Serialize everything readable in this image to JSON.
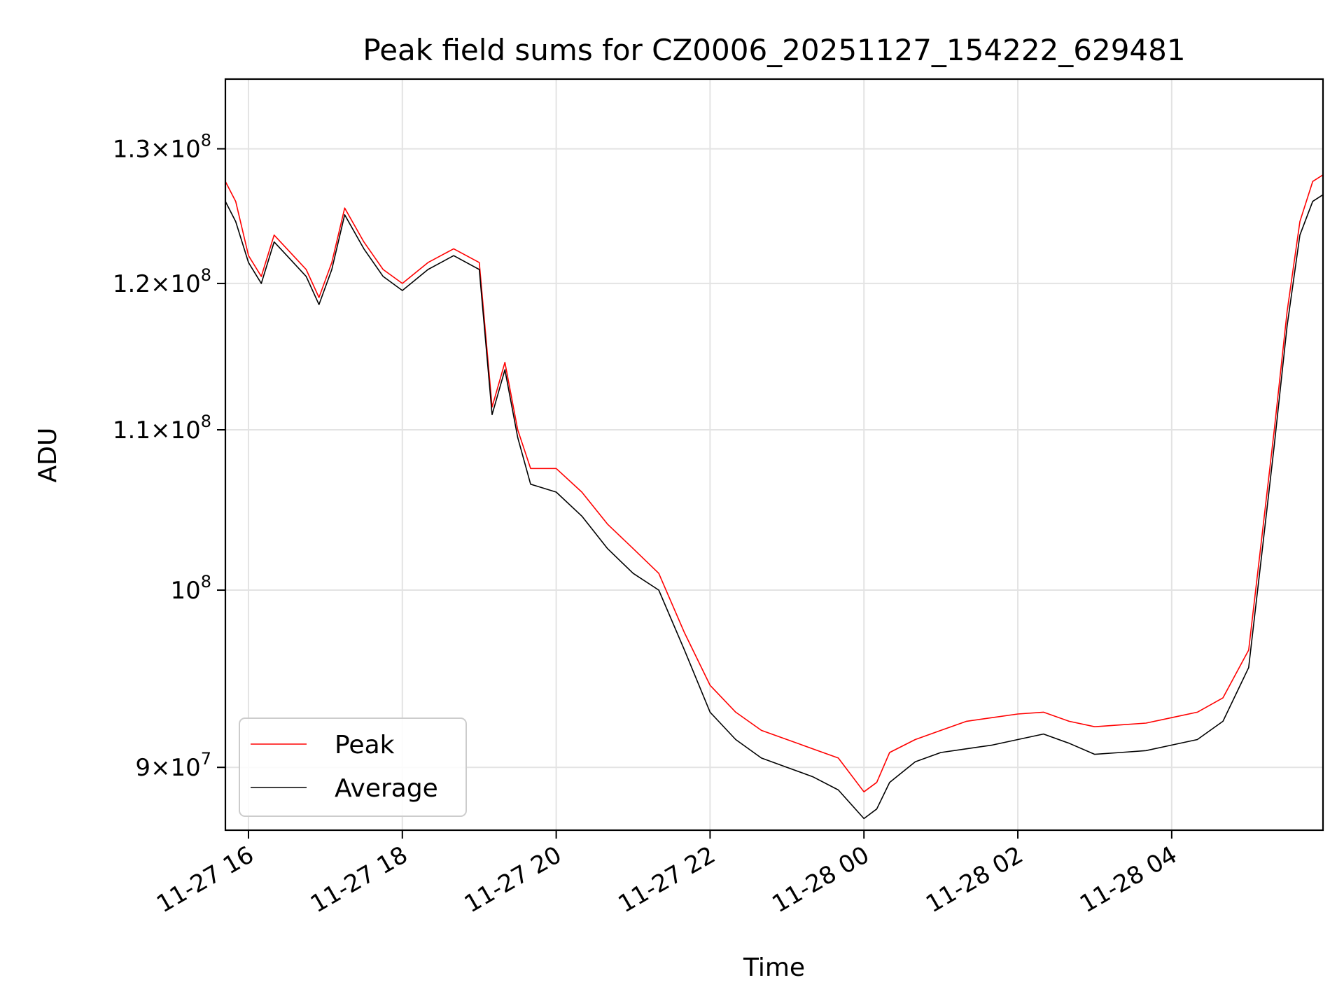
{
  "chart_data": {
    "type": "line",
    "title": "Peak field sums for CZ0006_20251127_154222_629481",
    "xlabel": "Time",
    "ylabel": "ADU",
    "y_scale": "log",
    "xlim": [
      "2025-11-27 15:42",
      "2025-11-28 05:58"
    ],
    "ylim": [
      86700000,
      135500000
    ],
    "grid": true,
    "legend_position": "lower-left",
    "x_ticks": [
      {
        "t": "2025-11-27 16:00",
        "label": "11-27 16"
      },
      {
        "t": "2025-11-27 18:00",
        "label": "11-27 18"
      },
      {
        "t": "2025-11-27 20:00",
        "label": "11-27 20"
      },
      {
        "t": "2025-11-27 22:00",
        "label": "11-27 22"
      },
      {
        "t": "2025-11-28 00:00",
        "label": "11-28 00"
      },
      {
        "t": "2025-11-28 02:00",
        "label": "11-28 02"
      },
      {
        "t": "2025-11-28 04:00",
        "label": "11-28 04"
      }
    ],
    "y_ticks": [
      {
        "v": 90000000,
        "mantissa": "9",
        "exp": "7",
        "label": "9 × 10^7"
      },
      {
        "v": 100000000,
        "mantissa": "",
        "exp": "8",
        "label": "10^8"
      },
      {
        "v": 110000000,
        "mantissa": "1.1",
        "exp": "8",
        "label": "1.1 × 10^8"
      },
      {
        "v": 120000000,
        "mantissa": "1.2",
        "exp": "8",
        "label": "1.2 × 10^8"
      },
      {
        "v": 130000000,
        "mantissa": "1.3",
        "exp": "8",
        "label": "1.3 × 10^8"
      }
    ],
    "series": [
      {
        "name": "Peak",
        "color": "#ff0000",
        "x": [
          "2025-11-27 15:42",
          "2025-11-27 15:50",
          "2025-11-27 16:00",
          "2025-11-27 16:10",
          "2025-11-27 16:20",
          "2025-11-27 16:30",
          "2025-11-27 16:45",
          "2025-11-27 16:55",
          "2025-11-27 17:05",
          "2025-11-27 17:15",
          "2025-11-27 17:30",
          "2025-11-27 17:45",
          "2025-11-27 18:00",
          "2025-11-27 18:20",
          "2025-11-27 18:40",
          "2025-11-27 19:00",
          "2025-11-27 19:10",
          "2025-11-27 19:20",
          "2025-11-27 19:30",
          "2025-11-27 19:40",
          "2025-11-27 20:00",
          "2025-11-27 20:20",
          "2025-11-27 20:40",
          "2025-11-27 21:00",
          "2025-11-27 21:20",
          "2025-11-27 21:40",
          "2025-11-27 22:00",
          "2025-11-27 22:20",
          "2025-11-27 22:40",
          "2025-11-27 23:00",
          "2025-11-27 23:20",
          "2025-11-27 23:40",
          "2025-11-28 00:00",
          "2025-11-28 00:10",
          "2025-11-28 00:20",
          "2025-11-28 00:40",
          "2025-11-28 01:00",
          "2025-11-28 01:20",
          "2025-11-28 01:40",
          "2025-11-28 02:00",
          "2025-11-28 02:20",
          "2025-11-28 02:40",
          "2025-11-28 03:00",
          "2025-11-28 03:20",
          "2025-11-28 03:40",
          "2025-11-28 04:00",
          "2025-11-28 04:20",
          "2025-11-28 04:40",
          "2025-11-28 05:00",
          "2025-11-28 05:10",
          "2025-11-28 05:20",
          "2025-11-28 05:30",
          "2025-11-28 05:40",
          "2025-11-28 05:50",
          "2025-11-28 05:58"
        ],
        "y": [
          127500000,
          126000000,
          122000000,
          120500000,
          123500000,
          122500000,
          121000000,
          119000000,
          121500000,
          125500000,
          123000000,
          121000000,
          120000000,
          121500000,
          122500000,
          121500000,
          111500000,
          114500000,
          110000000,
          107500000,
          107500000,
          106000000,
          104000000,
          102500000,
          101000000,
          97500000,
          94500000,
          93000000,
          92000000,
          91500000,
          91000000,
          90500000,
          88700000,
          89200000,
          90800000,
          91500000,
          92000000,
          92500000,
          92700000,
          92900000,
          93000000,
          92500000,
          92200000,
          92300000,
          92400000,
          92700000,
          93000000,
          93800000,
          96500000,
          103000000,
          110000000,
          118000000,
          124500000,
          127500000,
          128000000
        ]
      },
      {
        "name": "Average",
        "color": "#000000",
        "x": [
          "2025-11-27 15:42",
          "2025-11-27 15:50",
          "2025-11-27 16:00",
          "2025-11-27 16:10",
          "2025-11-27 16:20",
          "2025-11-27 16:30",
          "2025-11-27 16:45",
          "2025-11-27 16:55",
          "2025-11-27 17:05",
          "2025-11-27 17:15",
          "2025-11-27 17:30",
          "2025-11-27 17:45",
          "2025-11-27 18:00",
          "2025-11-27 18:20",
          "2025-11-27 18:40",
          "2025-11-27 19:00",
          "2025-11-27 19:10",
          "2025-11-27 19:20",
          "2025-11-27 19:30",
          "2025-11-27 19:40",
          "2025-11-27 20:00",
          "2025-11-27 20:20",
          "2025-11-27 20:40",
          "2025-11-27 21:00",
          "2025-11-27 21:20",
          "2025-11-27 21:40",
          "2025-11-27 22:00",
          "2025-11-27 22:20",
          "2025-11-27 22:40",
          "2025-11-27 23:00",
          "2025-11-27 23:20",
          "2025-11-27 23:40",
          "2025-11-28 00:00",
          "2025-11-28 00:10",
          "2025-11-28 00:20",
          "2025-11-28 00:40",
          "2025-11-28 01:00",
          "2025-11-28 01:20",
          "2025-11-28 01:40",
          "2025-11-28 02:00",
          "2025-11-28 02:20",
          "2025-11-28 02:40",
          "2025-11-28 03:00",
          "2025-11-28 03:20",
          "2025-11-28 03:40",
          "2025-11-28 04:00",
          "2025-11-28 04:20",
          "2025-11-28 04:40",
          "2025-11-28 05:00",
          "2025-11-28 05:10",
          "2025-11-28 05:20",
          "2025-11-28 05:30",
          "2025-11-28 05:40",
          "2025-11-28 05:50",
          "2025-11-28 05:58"
        ],
        "y": [
          126000000,
          124500000,
          121500000,
          120000000,
          123000000,
          122000000,
          120500000,
          118500000,
          121000000,
          125000000,
          122500000,
          120500000,
          119500000,
          121000000,
          122000000,
          121000000,
          111000000,
          114000000,
          109500000,
          106500000,
          106000000,
          104500000,
          102500000,
          101000000,
          100000000,
          96500000,
          93000000,
          91500000,
          90500000,
          90000000,
          89500000,
          88800000,
          87300000,
          87800000,
          89200000,
          90300000,
          90800000,
          91000000,
          91200000,
          91500000,
          91800000,
          91300000,
          90700000,
          90800000,
          90900000,
          91200000,
          91500000,
          92500000,
          95500000,
          102000000,
          109000000,
          117000000,
          123500000,
          126000000,
          126500000
        ]
      }
    ]
  }
}
